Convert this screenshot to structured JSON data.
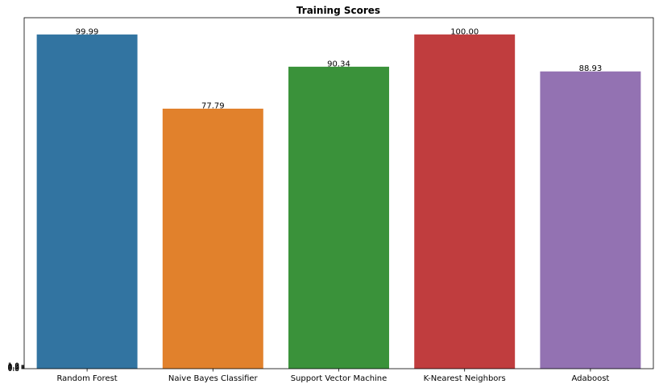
{
  "chart_data": {
    "type": "bar",
    "title": "Training Scores",
    "xlabel": "",
    "ylabel": "",
    "categories": [
      "Random Forest",
      "Naive Bayes Classifier",
      "Support Vector Machine",
      "K-Nearest Neighbors",
      "Adaboost"
    ],
    "values": [
      99.99,
      77.79,
      90.34,
      100.0,
      88.93
    ],
    "data_labels": [
      "99.99",
      "77.79",
      "90.34",
      "100.00",
      "88.93"
    ],
    "colors": [
      "#3274a1",
      "#e1812c",
      "#3a923a",
      "#c03d3e",
      "#9372b2"
    ],
    "y_tick_labels": [
      "0.0",
      "0.2",
      "0.4",
      "0.6",
      "0.8",
      "1.0"
    ],
    "y_tick_values": [
      0,
      0.2,
      0.4,
      0.6,
      0.8,
      1.0
    ],
    "ylim": [
      0,
      105
    ],
    "grid": false,
    "legend": "none"
  }
}
